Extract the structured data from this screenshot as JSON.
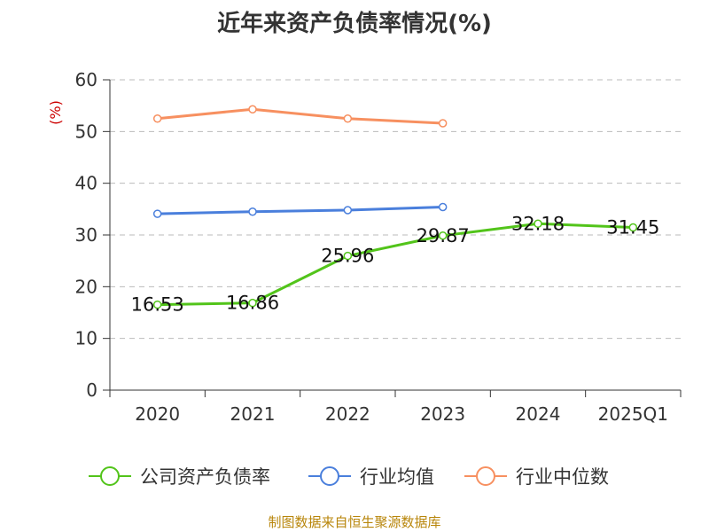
{
  "chart_data": {
    "type": "line",
    "title": "近年来资产负债率情况(%)",
    "ylabel": "(%)",
    "xlabel": "",
    "categories": [
      "2020",
      "2021",
      "2022",
      "2023",
      "2024",
      "2025Q1"
    ],
    "ylim": [
      0,
      60
    ],
    "yticks": [
      0,
      10,
      20,
      30,
      40,
      50,
      60
    ],
    "grid": true,
    "legend_position": "bottom",
    "series": [
      {
        "name": "公司资产负债率",
        "color": "#52c41a",
        "values": [
          16.53,
          16.86,
          25.96,
          29.87,
          32.18,
          31.45
        ],
        "labels": [
          "16.53",
          "16.86",
          "25.96",
          "29.87",
          "32.18",
          "31.45"
        ],
        "show_labels": true
      },
      {
        "name": "行业均值",
        "color": "#4a7fdc",
        "values": [
          34.1,
          34.5,
          34.8,
          35.4,
          null,
          null
        ],
        "show_labels": false
      },
      {
        "name": "行业中位数",
        "color": "#f79060",
        "values": [
          52.5,
          54.3,
          52.5,
          51.6,
          null,
          null
        ],
        "show_labels": false
      }
    ]
  },
  "footer": {
    "source": "制图数据来自恒生聚源数据库"
  }
}
